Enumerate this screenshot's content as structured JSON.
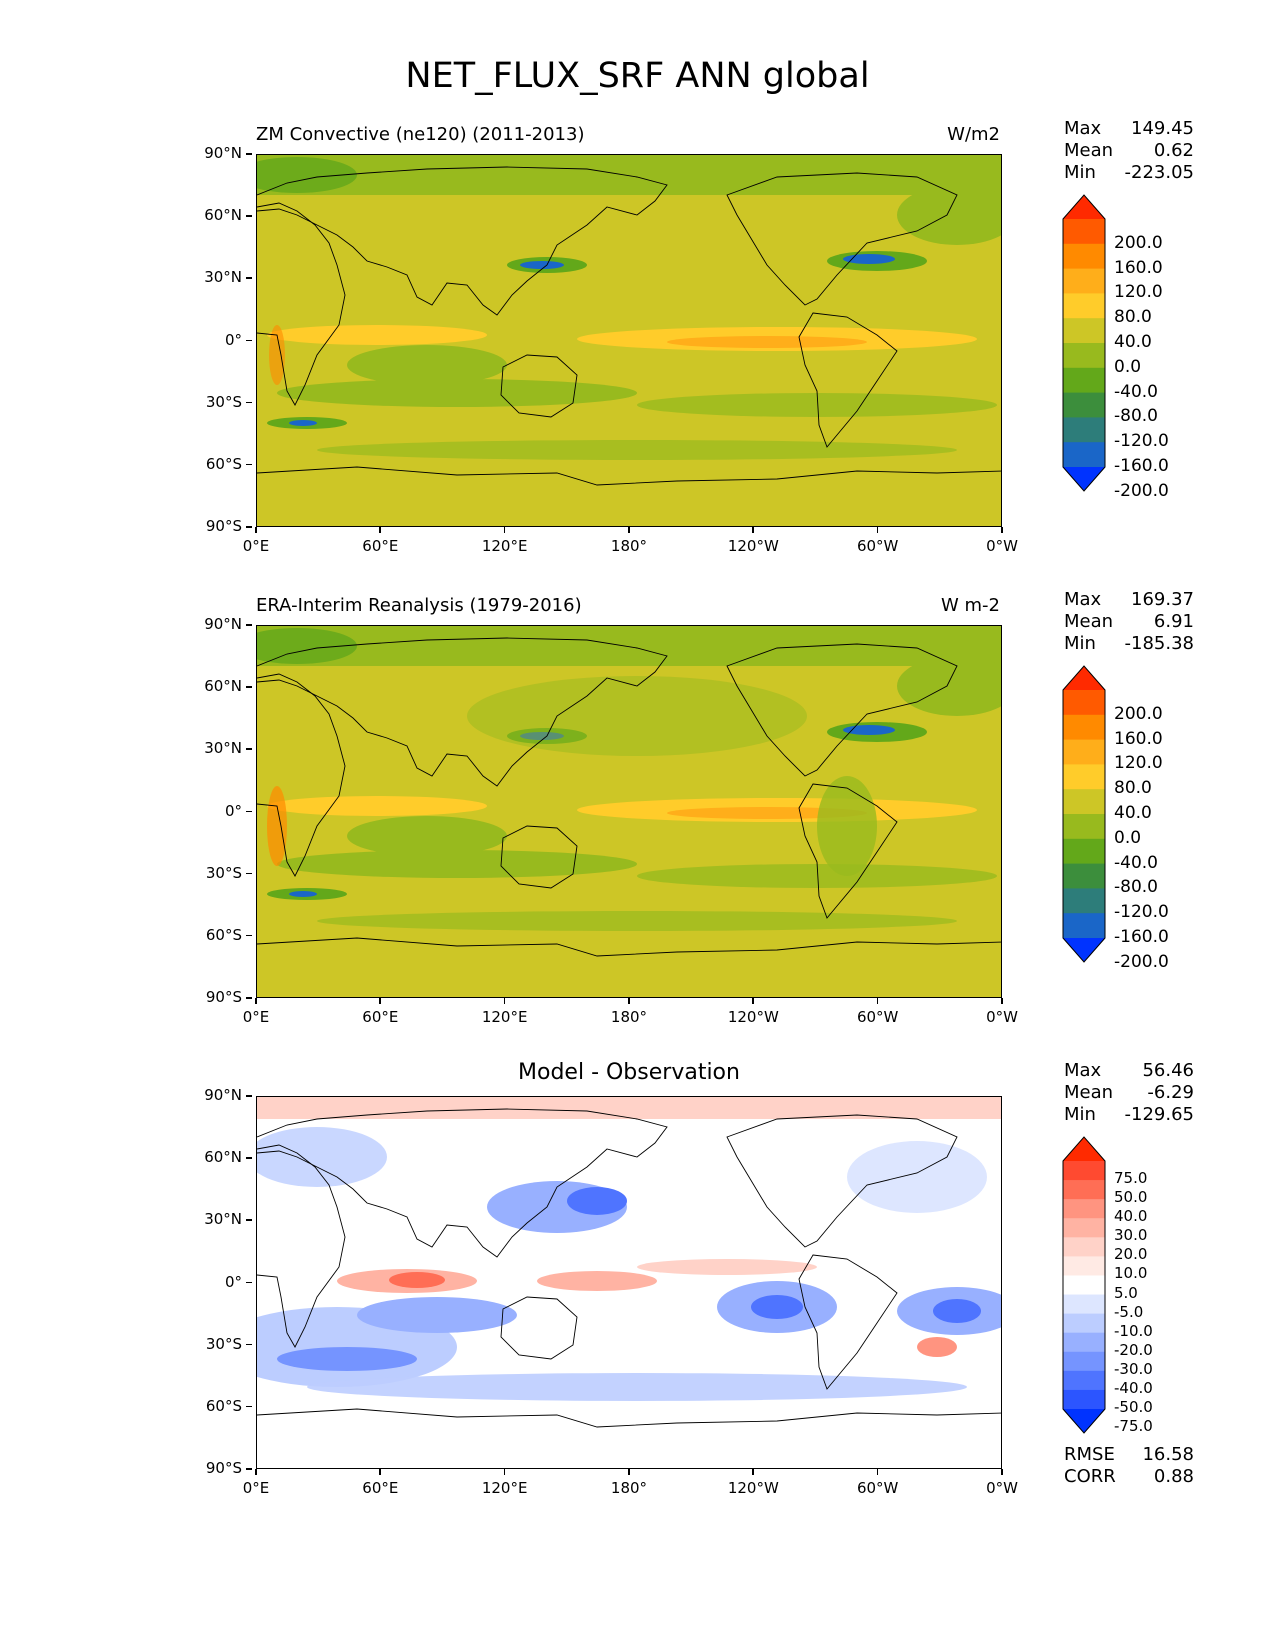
{
  "suptitle": "NET_FLUX_SRF ANN global",
  "axes": {
    "y_ticks": [
      "90°N",
      "60°N",
      "30°N",
      "0°",
      "30°S",
      "60°S",
      "90°S"
    ],
    "x_ticks": [
      "0°E",
      "60°E",
      "120°E",
      "180°",
      "120°W",
      "60°W",
      "0°W"
    ]
  },
  "panels": [
    {
      "title_left": "ZM Convective (ne120) (2011-2013)",
      "title_right": "W/m2",
      "title_center": "",
      "stats": [
        {
          "label": "Max",
          "value": "149.45"
        },
        {
          "label": "Mean",
          "value": "0.62"
        },
        {
          "label": "Min",
          "value": "-223.05"
        }
      ],
      "colorbar": {
        "labels": [
          "200.0",
          "160.0",
          "120.0",
          "80.0",
          "40.0",
          "0.0",
          "-40.0",
          "-80.0",
          "-120.0",
          "-160.0",
          "-200.0"
        ],
        "colors": [
          "#ff2a00",
          "#ff5a00",
          "#ff8a00",
          "#ffae1a",
          "#ffcc2a",
          "#cdc626",
          "#98ba1e",
          "#63a81a",
          "#3c8e3c",
          "#2d7d7a",
          "#1a66c8",
          "#0033ff"
        ]
      }
    },
    {
      "title_left": "ERA-Interim Reanalysis (1979-2016)",
      "title_right": "W m-2",
      "title_center": "",
      "stats": [
        {
          "label": "Max",
          "value": "169.37"
        },
        {
          "label": "Mean",
          "value": "6.91"
        },
        {
          "label": "Min",
          "value": "-185.38"
        }
      ],
      "colorbar": {
        "labels": [
          "200.0",
          "160.0",
          "120.0",
          "80.0",
          "40.0",
          "0.0",
          "-40.0",
          "-80.0",
          "-120.0",
          "-160.0",
          "-200.0"
        ],
        "colors": [
          "#ff2a00",
          "#ff5a00",
          "#ff8a00",
          "#ffae1a",
          "#ffcc2a",
          "#cdc626",
          "#98ba1e",
          "#63a81a",
          "#3c8e3c",
          "#2d7d7a",
          "#1a66c8",
          "#0033ff"
        ]
      }
    },
    {
      "title_left": "",
      "title_right": "",
      "title_center": "Model - Observation",
      "stats": [
        {
          "label": "Max",
          "value": "56.46"
        },
        {
          "label": "Mean",
          "value": "-6.29"
        },
        {
          "label": "Min",
          "value": "-129.65"
        }
      ],
      "extra_stats": [
        {
          "label": "RMSE",
          "value": "16.58"
        },
        {
          "label": "CORR",
          "value": "0.88"
        }
      ],
      "colorbar": {
        "labels": [
          "75.0",
          "50.0",
          "40.0",
          "30.0",
          "20.0",
          "10.0",
          "5.0",
          "-5.0",
          "-10.0",
          "-20.0",
          "-30.0",
          "-40.0",
          "-50.0",
          "-75.0"
        ],
        "colors": [
          "#ff2a00",
          "#ff4a30",
          "#ff6e55",
          "#ff9480",
          "#ffb3a3",
          "#ffd2c8",
          "#ffeae4",
          "#ffffff",
          "#dde6ff",
          "#bccdff",
          "#98b0ff",
          "#7594ff",
          "#4f74ff",
          "#2c55ff",
          "#0033ff"
        ]
      }
    }
  ]
}
